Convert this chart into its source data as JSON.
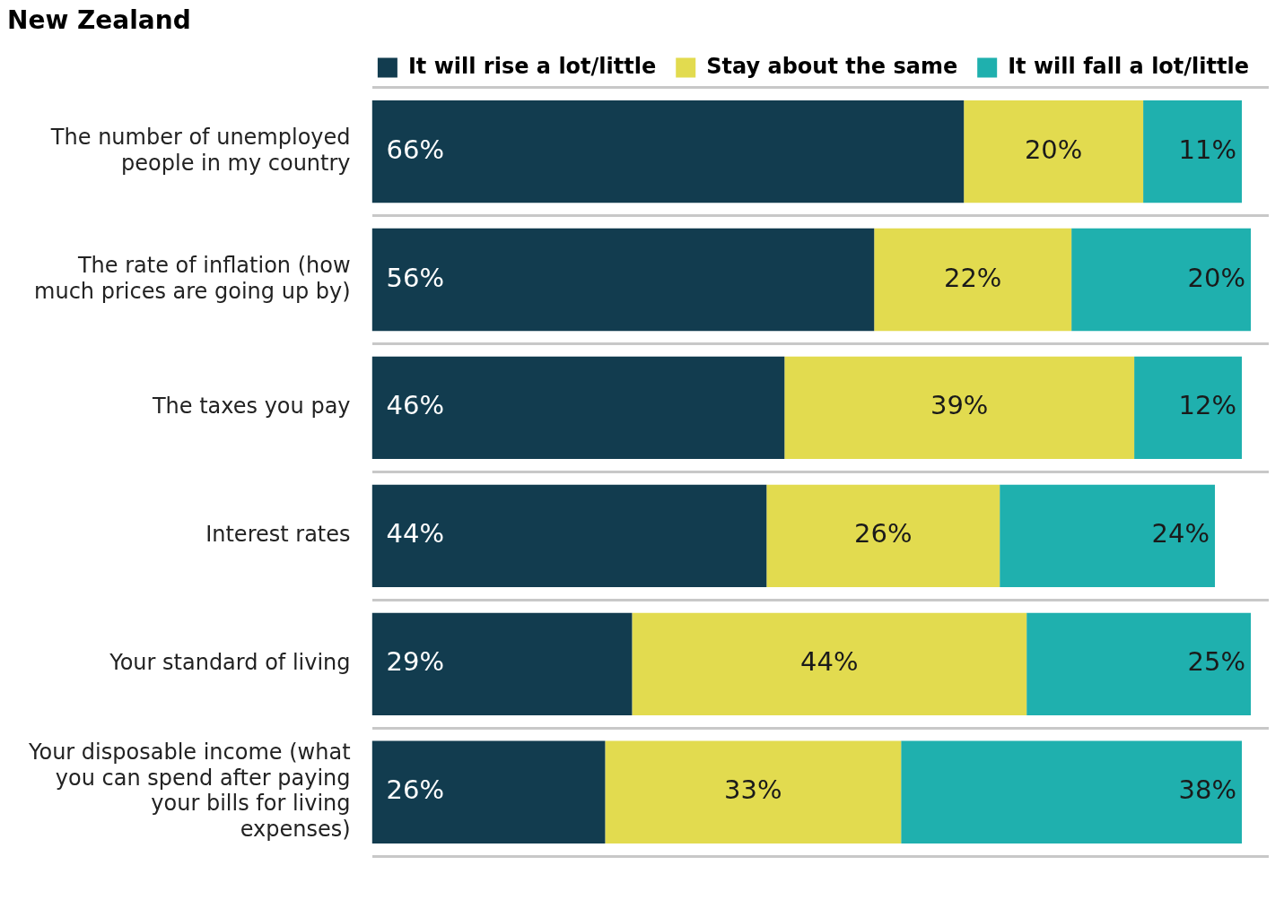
{
  "chart_data": {
    "type": "bar",
    "orientation": "horizontal",
    "stacked": true,
    "title": "New Zealand",
    "categories": [
      "The number of unemployed people in my country",
      "The rate of inflation (how much prices are going up by)",
      "The taxes you pay",
      "Interest rates",
      "Your standard of living",
      "Your disposable income (what you can spend after paying your bills for living expenses)"
    ],
    "series": [
      {
        "name": "It will rise a lot/little",
        "color": "#123c4f",
        "values": [
          66,
          56,
          46,
          44,
          29,
          26
        ],
        "value_labels": [
          "66%",
          "56%",
          "46%",
          "44%",
          "29%",
          "26%"
        ]
      },
      {
        "name": "Stay about the same",
        "color": "#e2db4f",
        "values": [
          20,
          22,
          39,
          26,
          44,
          33
        ],
        "value_labels": [
          "20%",
          "22%",
          "39%",
          "26%",
          "44%",
          "33%"
        ]
      },
      {
        "name": "It will fall a lot/little",
        "color": "#1fb0ae",
        "values": [
          11,
          20,
          12,
          24,
          25,
          38
        ],
        "value_labels": [
          "11%",
          "20%",
          "12%",
          "24%",
          "25%",
          "38%"
        ]
      }
    ],
    "xlim": [
      0,
      100
    ],
    "tick_labels": "y",
    "grid": "y",
    "legend": "top right"
  }
}
